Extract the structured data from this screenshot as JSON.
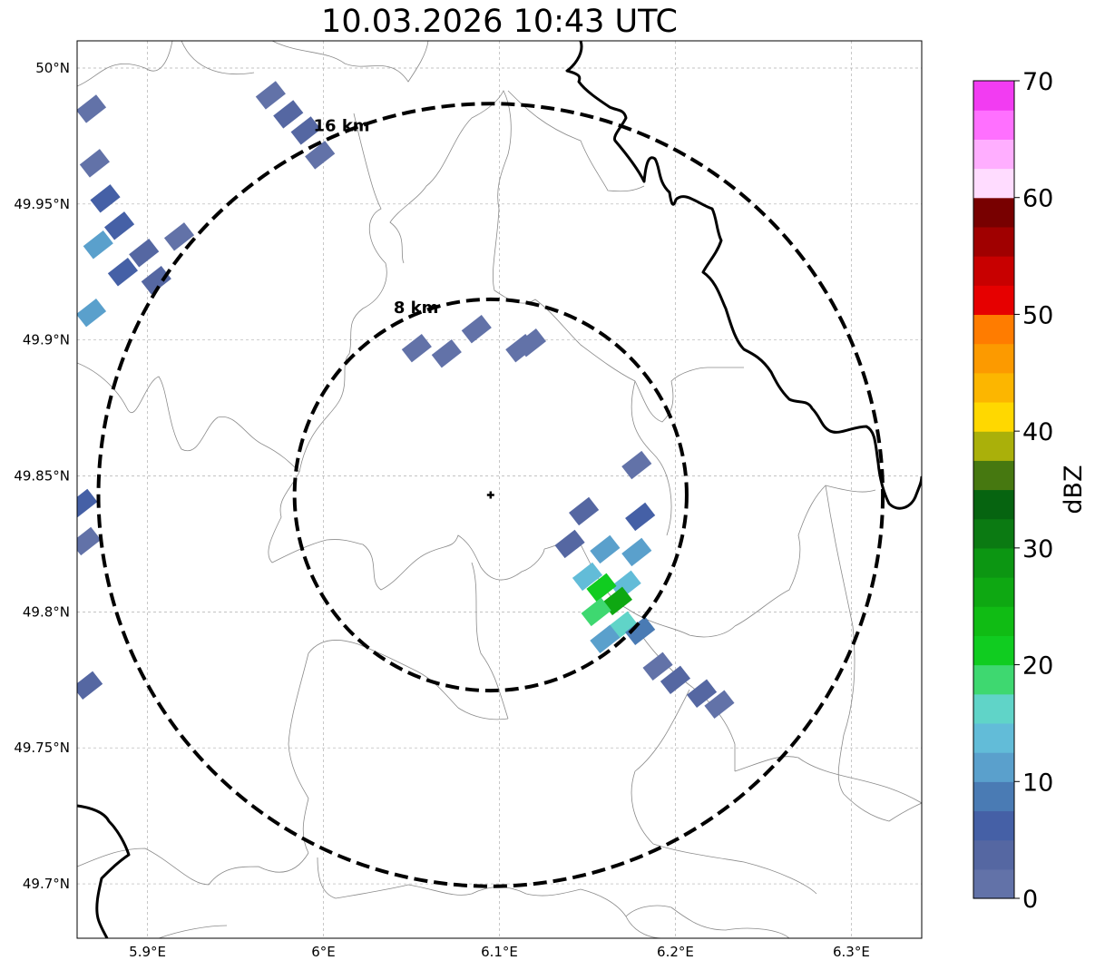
{
  "title": "10.03.2026 10:43 UTC",
  "map": {
    "lon_range": [
      5.86,
      6.34
    ],
    "lat_range": [
      49.68,
      50.01
    ],
    "lon_ticks": [
      {
        "value": 5.9,
        "label": "5.9°E"
      },
      {
        "value": 6.0,
        "label": "6°E"
      },
      {
        "value": 6.1,
        "label": "6.1°E"
      },
      {
        "value": 6.2,
        "label": "6.2°E"
      },
      {
        "value": 6.3,
        "label": "6.3°E"
      }
    ],
    "lat_ticks": [
      {
        "value": 50.0,
        "label": "50°N"
      },
      {
        "value": 49.95,
        "label": "49.95°N"
      },
      {
        "value": 49.9,
        "label": "49.9°N"
      },
      {
        "value": 49.85,
        "label": "49.85°N"
      },
      {
        "value": 49.8,
        "label": "49.8°N"
      },
      {
        "value": 49.75,
        "label": "49.75°N"
      },
      {
        "value": 49.7,
        "label": "49.7°N"
      }
    ],
    "radar_site": {
      "lon": 6.095,
      "lat": 49.843
    },
    "rings": [
      {
        "radius_km": 8,
        "label": "8 km"
      },
      {
        "radius_km": 16,
        "label": "16 km"
      }
    ]
  },
  "colorbar": {
    "unit": "dBZ",
    "min": 0,
    "max": 70,
    "ticks": [
      {
        "value": 0,
        "label": "0"
      },
      {
        "value": 10,
        "label": "10"
      },
      {
        "value": 20,
        "label": "20"
      },
      {
        "value": 30,
        "label": "30"
      },
      {
        "value": 40,
        "label": "40"
      },
      {
        "value": 50,
        "label": "50"
      },
      {
        "value": 60,
        "label": "60"
      },
      {
        "value": 70,
        "label": "70"
      }
    ],
    "colors": [
      "#6272a8",
      "#5567a2",
      "#4560a6",
      "#4a7bb4",
      "#5aa0cc",
      "#62bcd8",
      "#60d4c8",
      "#3ed870",
      "#10cc20",
      "#10bc14",
      "#0ea812",
      "#0c9612",
      "#0b7a12",
      "#066410",
      "#467810",
      "#aab00a",
      "#ffd800",
      "#fcb600",
      "#fc9a00",
      "#ff7c00",
      "#e60000",
      "#c80000",
      "#a00000",
      "#780000",
      "#ffdcff",
      "#ffaeff",
      "#ff70ff",
      "#f23cf2"
    ]
  },
  "echoes": [
    {
      "lon": 5.876,
      "lat": 49.952,
      "dbz": 6
    },
    {
      "lon": 5.884,
      "lat": 49.942,
      "dbz": 5
    },
    {
      "lon": 5.872,
      "lat": 49.935,
      "dbz": 11
    },
    {
      "lon": 5.886,
      "lat": 49.925,
      "dbz": 7
    },
    {
      "lon": 5.898,
      "lat": 49.932,
      "dbz": 3
    },
    {
      "lon": 5.905,
      "lat": 49.922,
      "dbz": 4
    },
    {
      "lon": 5.868,
      "lat": 49.91,
      "dbz": 12
    },
    {
      "lon": 5.87,
      "lat": 49.965,
      "dbz": 2
    },
    {
      "lon": 5.868,
      "lat": 49.985,
      "dbz": 1
    },
    {
      "lon": 5.918,
      "lat": 49.938,
      "dbz": 2
    },
    {
      "lon": 5.98,
      "lat": 49.983,
      "dbz": 4
    },
    {
      "lon": 5.99,
      "lat": 49.977,
      "dbz": 3
    },
    {
      "lon": 5.998,
      "lat": 49.968,
      "dbz": 1
    },
    {
      "lon": 5.97,
      "lat": 49.99,
      "dbz": 2
    },
    {
      "lon": 5.863,
      "lat": 49.84,
      "dbz": 5
    },
    {
      "lon": 5.865,
      "lat": 49.826,
      "dbz": 2
    },
    {
      "lon": 5.866,
      "lat": 49.773,
      "dbz": 3
    },
    {
      "lon": 6.148,
      "lat": 49.837,
      "dbz": 3
    },
    {
      "lon": 6.18,
      "lat": 49.835,
      "dbz": 5
    },
    {
      "lon": 6.14,
      "lat": 49.825,
      "dbz": 4
    },
    {
      "lon": 6.16,
      "lat": 49.823,
      "dbz": 10
    },
    {
      "lon": 6.178,
      "lat": 49.822,
      "dbz": 12
    },
    {
      "lon": 6.15,
      "lat": 49.813,
      "dbz": 13
    },
    {
      "lon": 6.172,
      "lat": 49.81,
      "dbz": 14
    },
    {
      "lon": 6.158,
      "lat": 49.809,
      "dbz": 22
    },
    {
      "lon": 6.167,
      "lat": 49.804,
      "dbz": 26
    },
    {
      "lon": 6.155,
      "lat": 49.8,
      "dbz": 19
    },
    {
      "lon": 6.17,
      "lat": 49.795,
      "dbz": 16
    },
    {
      "lon": 6.16,
      "lat": 49.79,
      "dbz": 11
    },
    {
      "lon": 6.18,
      "lat": 49.793,
      "dbz": 9
    },
    {
      "lon": 6.2,
      "lat": 49.775,
      "dbz": 4
    },
    {
      "lon": 6.215,
      "lat": 49.77,
      "dbz": 3
    },
    {
      "lon": 6.19,
      "lat": 49.78,
      "dbz": 1
    },
    {
      "lon": 6.225,
      "lat": 49.766,
      "dbz": 2
    },
    {
      "lon": 6.053,
      "lat": 49.897,
      "dbz": 1
    },
    {
      "lon": 6.07,
      "lat": 49.895,
      "dbz": 0
    },
    {
      "lon": 6.087,
      "lat": 49.904,
      "dbz": 1
    },
    {
      "lon": 6.112,
      "lat": 49.897,
      "dbz": 2
    },
    {
      "lon": 6.118,
      "lat": 49.899,
      "dbz": 1
    },
    {
      "lon": 6.178,
      "lat": 49.854,
      "dbz": 2
    }
  ]
}
